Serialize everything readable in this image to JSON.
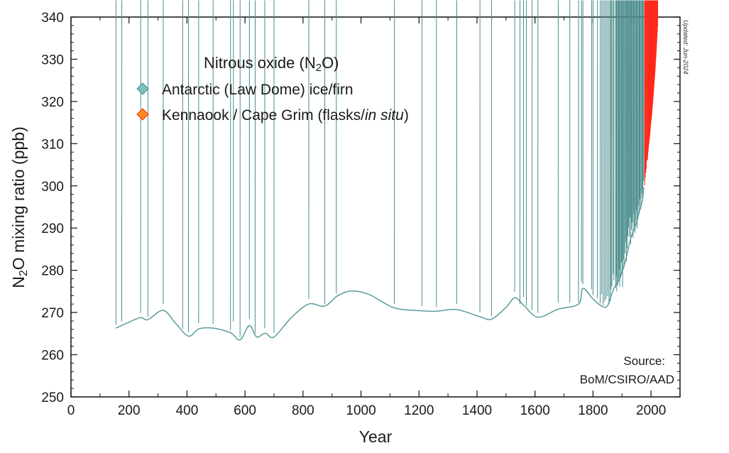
{
  "chart_data": {
    "type": "scatter",
    "title": "",
    "legend_title_parts": [
      "Nitrous oxide (N",
      "2",
      "O)"
    ],
    "xlabel": "Year",
    "ylabel_parts": [
      "N",
      "2",
      "O mixing ratio (ppb)"
    ],
    "xlim": [
      0,
      2100
    ],
    "ylim": [
      250,
      340
    ],
    "x_ticks": [
      0,
      200,
      400,
      600,
      800,
      1000,
      1200,
      1400,
      1600,
      1800,
      2000
    ],
    "y_ticks": [
      250,
      260,
      270,
      280,
      290,
      300,
      310,
      320,
      330,
      340
    ],
    "legend_position": "top-left",
    "source_line1": "Source:",
    "source_line2": "BoM/CSIRO/AAD",
    "updated_note": "Updated: Jun-2024",
    "colors": {
      "antarctic": "#7fbfbf",
      "antarctic_edge": "#4a8c8c",
      "capegrim": "#ff8c1a",
      "capegrim_edge": "#ff2a1a",
      "spline": "#5a9c9c"
    },
    "series": [
      {
        "name": "Antarctic (Law Dome) ice/firn",
        "marker": "diamond",
        "points": [
          [
            155,
            266.0
          ],
          [
            175,
            266.8
          ],
          [
            240,
            268.8
          ],
          [
            265,
            267.9
          ],
          [
            318,
            270.9
          ],
          [
            385,
            265.0
          ],
          [
            405,
            264.2
          ],
          [
            440,
            266.4
          ],
          [
            490,
            266.2
          ],
          [
            550,
            264.7
          ],
          [
            560,
            266.8
          ],
          [
            583,
            263.1
          ],
          [
            615,
            267.4
          ],
          [
            635,
            264.0
          ],
          [
            668,
            265.2
          ],
          [
            700,
            264.1
          ],
          [
            820,
            272.1
          ],
          [
            875,
            270.9
          ],
          [
            915,
            273.4
          ],
          [
            1115,
            270.9
          ],
          [
            1210,
            270.4
          ],
          [
            1260,
            270.2
          ],
          [
            1330,
            270.9
          ],
          [
            1410,
            268.9
          ],
          [
            1450,
            268.1
          ],
          [
            1530,
            273.8
          ],
          [
            1548,
            270.9
          ],
          [
            1560,
            272.6
          ],
          [
            1570,
            270.5
          ],
          [
            1590,
            269.5
          ],
          [
            1610,
            268.8
          ],
          [
            1680,
            271.2
          ],
          [
            1720,
            271.2
          ],
          [
            1750,
            271.3
          ],
          [
            1760,
            276.1
          ],
          [
            1765,
            275.6
          ],
          [
            1795,
            274.4
          ],
          [
            1800,
            273.0
          ],
          [
            1815,
            272.3
          ],
          [
            1825,
            271.1
          ],
          [
            1830,
            273.3
          ],
          [
            1835,
            270.6
          ],
          [
            1840,
            271.5
          ],
          [
            1845,
            272.1
          ],
          [
            1850,
            272.8
          ],
          [
            1855,
            270.9
          ],
          [
            1860,
            271.6
          ],
          [
            1862,
            274.4
          ],
          [
            1865,
            275.1
          ],
          [
            1870,
            278.1
          ],
          [
            1872,
            276.5
          ],
          [
            1878,
            274.8
          ],
          [
            1880,
            277.5
          ],
          [
            1882,
            273.9
          ],
          [
            1885,
            275.4
          ],
          [
            1888,
            276.9
          ],
          [
            1890,
            279.1
          ],
          [
            1892,
            275.0
          ],
          [
            1895,
            277.1
          ],
          [
            1898,
            280.8
          ],
          [
            1900,
            278.3
          ],
          [
            1902,
            274.9
          ],
          [
            1905,
            281.5
          ],
          [
            1907,
            279.5
          ],
          [
            1910,
            282.9
          ],
          [
            1912,
            285.6
          ],
          [
            1915,
            281.0
          ],
          [
            1918,
            284.1
          ],
          [
            1920,
            287.0
          ],
          [
            1922,
            289.1
          ],
          [
            1925,
            286.8
          ],
          [
            1928,
            291.4
          ],
          [
            1930,
            285.1
          ],
          [
            1932,
            288.5
          ],
          [
            1935,
            290.2
          ],
          [
            1938,
            286.6
          ],
          [
            1940,
            292.3
          ],
          [
            1942,
            289.3
          ],
          [
            1945,
            287.8
          ],
          [
            1948,
            290.6
          ],
          [
            1950,
            293.2
          ],
          [
            1952,
            288.8
          ],
          [
            1955,
            291.9
          ],
          [
            1958,
            294.2
          ],
          [
            1960,
            292.6
          ],
          [
            1962,
            295.8
          ],
          [
            1965,
            293.5
          ],
          [
            1968,
            297.1
          ],
          [
            1970,
            296.0
          ],
          [
            1972,
            298.2
          ],
          [
            1975,
            300.1
          ]
        ]
      },
      {
        "name": "Kennaook / Cape Grim (flasks/in situ)",
        "name_parts": [
          "Kennaook / Cape Grim (flasks/",
          "in situ",
          ")"
        ],
        "marker": "diamond",
        "points": [
          [
            1978,
            299.0
          ],
          [
            1980,
            300.9
          ],
          [
            1982,
            302.0
          ],
          [
            1984,
            302.9
          ],
          [
            1986,
            304.9
          ],
          [
            1988,
            305.1
          ],
          [
            1989,
            306.0
          ],
          [
            1990,
            307.0
          ],
          [
            1991,
            307.8
          ],
          [
            1992,
            308.6
          ],
          [
            1993,
            309.0
          ],
          [
            1994,
            309.6
          ],
          [
            1995,
            310.2
          ],
          [
            1996,
            310.9
          ],
          [
            1997,
            311.6
          ],
          [
            1998,
            312.4
          ],
          [
            1999,
            313.2
          ],
          [
            2000,
            313.9
          ],
          [
            2001,
            314.6
          ],
          [
            2002,
            315.3
          ],
          [
            2003,
            316.0
          ],
          [
            2004,
            316.8
          ],
          [
            2005,
            317.6
          ],
          [
            2006,
            318.4
          ],
          [
            2007,
            319.3
          ],
          [
            2008,
            320.2
          ],
          [
            2009,
            321.1
          ],
          [
            2010,
            322.0
          ],
          [
            2011,
            323.0
          ],
          [
            2012,
            324.0
          ],
          [
            2013,
            325.0
          ],
          [
            2014,
            326.0
          ],
          [
            2015,
            327.1
          ],
          [
            2016,
            328.2
          ],
          [
            2017,
            329.3
          ],
          [
            2018,
            330.5
          ],
          [
            2019,
            331.7
          ],
          [
            2020,
            332.9
          ],
          [
            2021,
            334.1
          ],
          [
            2022,
            335.4
          ],
          [
            2023,
            336.7
          ]
        ]
      }
    ],
    "spline": [
      [
        155,
        266.3
      ],
      [
        200,
        267.7
      ],
      [
        240,
        268.8
      ],
      [
        265,
        268.3
      ],
      [
        318,
        270.5
      ],
      [
        360,
        267.5
      ],
      [
        405,
        264.4
      ],
      [
        440,
        266.1
      ],
      [
        490,
        266.3
      ],
      [
        550,
        265.2
      ],
      [
        583,
        263.5
      ],
      [
        615,
        266.9
      ],
      [
        640,
        264.2
      ],
      [
        670,
        265.1
      ],
      [
        700,
        264.2
      ],
      [
        760,
        268.8
      ],
      [
        820,
        272.0
      ],
      [
        875,
        271.5
      ],
      [
        920,
        274.0
      ],
      [
        970,
        275.1
      ],
      [
        1030,
        274.2
      ],
      [
        1115,
        271.1
      ],
      [
        1210,
        270.4
      ],
      [
        1260,
        270.3
      ],
      [
        1330,
        270.7
      ],
      [
        1410,
        269.0
      ],
      [
        1450,
        268.4
      ],
      [
        1500,
        271.2
      ],
      [
        1530,
        273.5
      ],
      [
        1560,
        271.8
      ],
      [
        1610,
        268.9
      ],
      [
        1680,
        270.8
      ],
      [
        1750,
        272.0
      ],
      [
        1765,
        275.7
      ],
      [
        1800,
        273.2
      ],
      [
        1830,
        271.5
      ],
      [
        1850,
        271.6
      ],
      [
        1870,
        275.4
      ],
      [
        1890,
        277.8
      ],
      [
        1910,
        281.8
      ],
      [
        1930,
        287.5
      ],
      [
        1950,
        291.3
      ],
      [
        1960,
        294.0
      ],
      [
        1970,
        296.5
      ],
      [
        1975,
        299.6
      ]
    ]
  }
}
